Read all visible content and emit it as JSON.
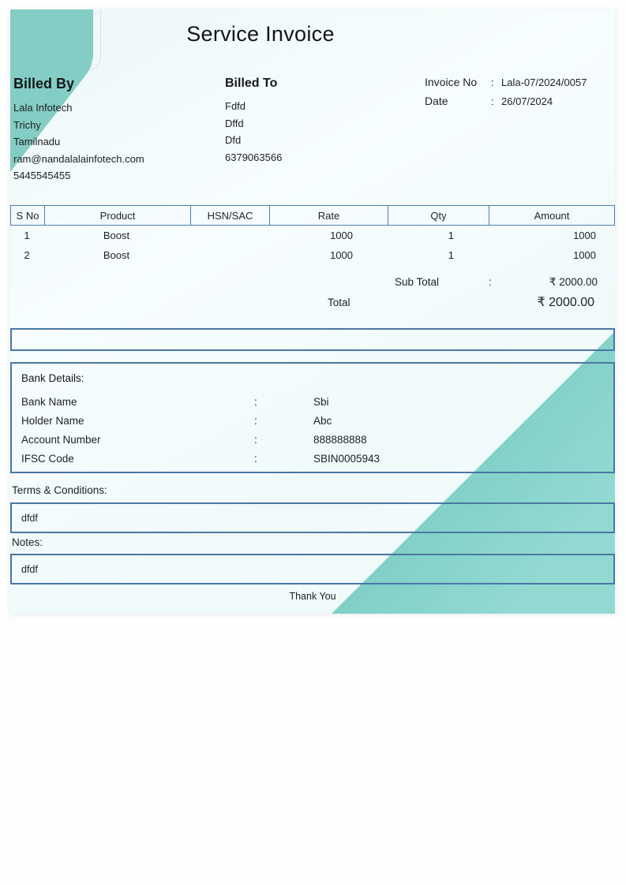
{
  "title": "Service Invoice",
  "billed_by": {
    "heading": "Billed By",
    "lines": [
      "Lala Infotech",
      "Trichy",
      "Tamilnadu",
      "ram@nandalalainfotech.com",
      "5445545455"
    ]
  },
  "billed_to": {
    "heading": "Billed To",
    "lines": [
      "Fdfd",
      "Dffd",
      "Dfd",
      "6379063566"
    ]
  },
  "meta": {
    "invoice_no_label": "Invoice No",
    "invoice_no_sep": ":",
    "invoice_no": "Lala-07/2024/0057",
    "date_label": "Date",
    "date_sep": ":",
    "date": "26/07/2024"
  },
  "items_table": {
    "headers": [
      "S No",
      "Product",
      "HSN/SAC",
      "Rate",
      "Qty",
      "Amount"
    ],
    "rows": [
      [
        "1",
        "Boost",
        "",
        "1000",
        "1",
        "1000"
      ],
      [
        "2",
        "Boost",
        "",
        "1000",
        "1",
        "1000"
      ]
    ]
  },
  "totals": {
    "sub_total_label": "Sub Total",
    "sub_total_sep": ":",
    "sub_total_value": "₹ 2000.00",
    "total_label": "Total",
    "total_value": "₹ 2000.00"
  },
  "bank": {
    "heading": "Bank Details:",
    "rows": [
      {
        "label": "Bank Name",
        "sep": ":",
        "value": "Sbi"
      },
      {
        "label": "Holder Name",
        "sep": ":",
        "value": "Abc"
      },
      {
        "label": "Account Number",
        "sep": ":",
        "value": "888888888"
      },
      {
        "label": "IFSC Code",
        "sep": ":",
        "value": "SBIN0005943"
      }
    ]
  },
  "terms": {
    "label": "Terms & Conditions:",
    "value": "dfdf"
  },
  "notes": {
    "label": "Notes:",
    "value": "dfdf"
  },
  "footer": {
    "thank_you": "Thank You"
  },
  "colors": {
    "accent-teal": "#84cdc4",
    "triangle-dark": "#58b8ae",
    "triangle-light": "#92d9d2",
    "box-border": "#4a77a3",
    "table-border": "#4d7fb5",
    "text": "#1b2025"
  }
}
